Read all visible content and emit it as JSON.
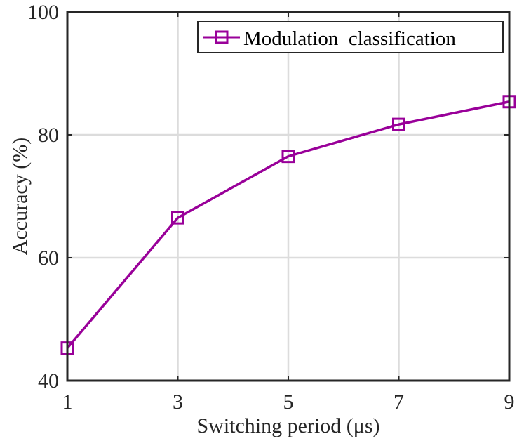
{
  "chart_data": {
    "type": "line",
    "title": "",
    "xlabel": "Switching period (μs)",
    "ylabel": "Accuracy (%)",
    "x": [
      1,
      3,
      5,
      7,
      9
    ],
    "xticks": [
      "1",
      "3",
      "5",
      "7",
      "9"
    ],
    "yticks": [
      "40",
      "60",
      "80",
      "100"
    ],
    "xlim": [
      1,
      9
    ],
    "ylim": [
      40,
      100
    ],
    "grid": true,
    "legend_position": "top-right",
    "series": [
      {
        "name": "Modulation  classification",
        "values": [
          45.3,
          66.5,
          76.5,
          81.7,
          85.4
        ],
        "color": "#990099",
        "marker": "square"
      }
    ]
  }
}
